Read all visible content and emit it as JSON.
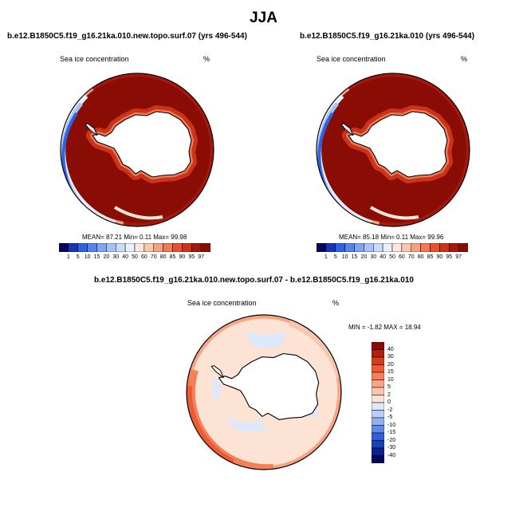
{
  "figure": {
    "title": "JJA"
  },
  "panels": [
    {
      "title": "b.e12.B1850C5.f19_g16.21ka.010.new.topo.surf.07 (yrs 496-544)",
      "variable": "Sea ice concentration",
      "units": "%",
      "stats": "MEAN=  87.21  Min=   0.11  Max=  99.98"
    },
    {
      "title": "b.e12.B1850C5.f19_g16.21ka.010 (yrs 496-544)",
      "variable": "Sea ice concentration",
      "units": "%",
      "stats": "MEAN=  85.18  Min=   0.11  Max=  99.96"
    },
    {
      "title": "b.e12.B1850C5.f19_g16.21ka.010.new.topo.surf.07 - b.e12.B1850C5.f19_g16.21ka.010",
      "variable": "Sea ice concentration",
      "units": "%",
      "stats": "MIN =  -1.82 MAX =  18.94"
    }
  ],
  "chart_data": [
    {
      "type": "heatmap",
      "projection": "south polar stereographic",
      "title": "b.e12.B1850C5.f19_g16.21ka.010.new.topo.surf.07 (yrs 496-544)",
      "variable": "Sea ice concentration",
      "units": "%",
      "mean": 87.21,
      "min": 0.11,
      "max": 99.98,
      "levels": [
        "1",
        "5",
        "10",
        "15",
        "20",
        "30",
        "40",
        "50",
        "60",
        "70",
        "80",
        "85",
        "90",
        "95",
        "97"
      ],
      "colors": [
        "#06065e",
        "#1636b8",
        "#2d62e0",
        "#5585ec",
        "#7ea6f2",
        "#a5c2f6",
        "#c8dbfa",
        "#eaf0fb",
        "#fde6da",
        "#fbc8ae",
        "#f7a07e",
        "#f17a55",
        "#e4532d",
        "#cc3318",
        "#a8170c",
        "#8a0d05"
      ]
    },
    {
      "type": "heatmap",
      "projection": "south polar stereographic",
      "title": "b.e12.B1850C5.f19_g16.21ka.010 (yrs 496-544)",
      "variable": "Sea ice concentration",
      "units": "%",
      "mean": 85.18,
      "min": 0.11,
      "max": 99.96,
      "levels": [
        "1",
        "5",
        "10",
        "15",
        "20",
        "30",
        "40",
        "50",
        "60",
        "70",
        "80",
        "85",
        "90",
        "95",
        "97"
      ],
      "colors": [
        "#06065e",
        "#1636b8",
        "#2d62e0",
        "#5585ec",
        "#7ea6f2",
        "#a5c2f6",
        "#c8dbfa",
        "#eaf0fb",
        "#fde6da",
        "#fbc8ae",
        "#f7a07e",
        "#f17a55",
        "#e4532d",
        "#cc3318",
        "#a8170c",
        "#8a0d05"
      ]
    },
    {
      "type": "heatmap",
      "projection": "south polar stereographic",
      "title": "b.e12.B1850C5.f19_g16.21ka.010.new.topo.surf.07 - b.e12.B1850C5.f19_g16.21ka.010",
      "variable": "Sea ice concentration",
      "units": "%",
      "min": -1.82,
      "max": 18.94,
      "levels": [
        "40",
        "30",
        "20",
        "15",
        "10",
        "5",
        "2",
        "0",
        "-2",
        "-5",
        "-10",
        "-15",
        "-20",
        "-30",
        "-40"
      ],
      "colors": [
        "#8a0d05",
        "#b41c0e",
        "#d83a1c",
        "#ee5a32",
        "#f57f58",
        "#f9a584",
        "#fbc6ad",
        "#fde3d3",
        "#dde9fa",
        "#b9d0f6",
        "#8eb1f0",
        "#5e8ae8",
        "#2f5fd9",
        "#1b3fb8",
        "#0c2190",
        "#06065e"
      ]
    }
  ]
}
